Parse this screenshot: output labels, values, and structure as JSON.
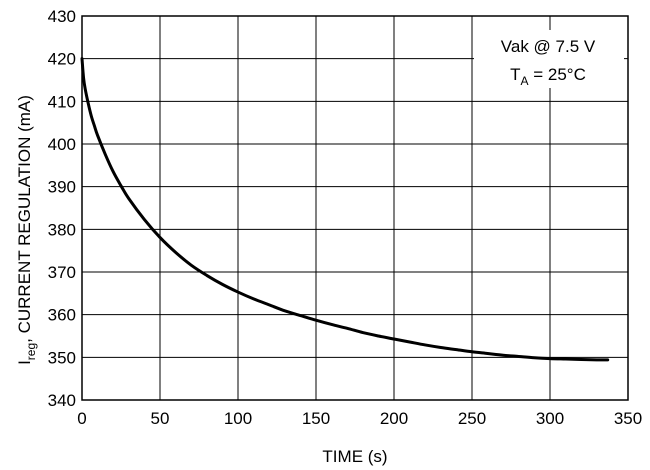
{
  "chart_data": {
    "type": "line",
    "title": "",
    "xlabel": "TIME (s)",
    "ylabel": {
      "symbol": "I",
      "subscript": "reg",
      "text": ", CURRENT REGULATION (mA)"
    },
    "xlim": [
      0,
      350
    ],
    "ylim": [
      340,
      430
    ],
    "x_ticks": [
      "0",
      "50",
      "100",
      "150",
      "200",
      "250",
      "300",
      "350"
    ],
    "y_ticks": [
      "340",
      "350",
      "360",
      "370",
      "380",
      "390",
      "400",
      "410",
      "420",
      "430"
    ],
    "grid": true,
    "annotation": {
      "line1": "Vak @ 7.5 V",
      "line2_symbol": "T",
      "line2_subscript": "A",
      "line2_rest": " = 25°C",
      "placement": "top-right"
    },
    "series": [
      {
        "x": [
          0,
          1,
          2,
          4,
          6,
          8,
          10,
          15,
          20,
          25,
          30,
          40,
          50,
          60,
          70,
          80,
          90,
          100,
          110,
          120,
          130,
          140,
          150,
          160,
          170,
          180,
          190,
          200,
          210,
          220,
          230,
          240,
          250,
          260,
          270,
          280,
          290,
          300,
          310,
          320,
          330,
          337
        ],
        "y": [
          420,
          415.5,
          413,
          409.5,
          406.5,
          404.2,
          402,
          397.5,
          393.5,
          390.2,
          387.2,
          382.3,
          378.1,
          374.6,
          371.6,
          369.2,
          367.1,
          365.3,
          363.7,
          362.3,
          360.9,
          359.8,
          358.7,
          357.7,
          356.8,
          355.8,
          355,
          354.3,
          353.6,
          352.9,
          352.3,
          351.8,
          351.3,
          350.9,
          350.5,
          350.2,
          349.9,
          349.7,
          349.6,
          349.5,
          349.4,
          349.4
        ]
      }
    ]
  }
}
